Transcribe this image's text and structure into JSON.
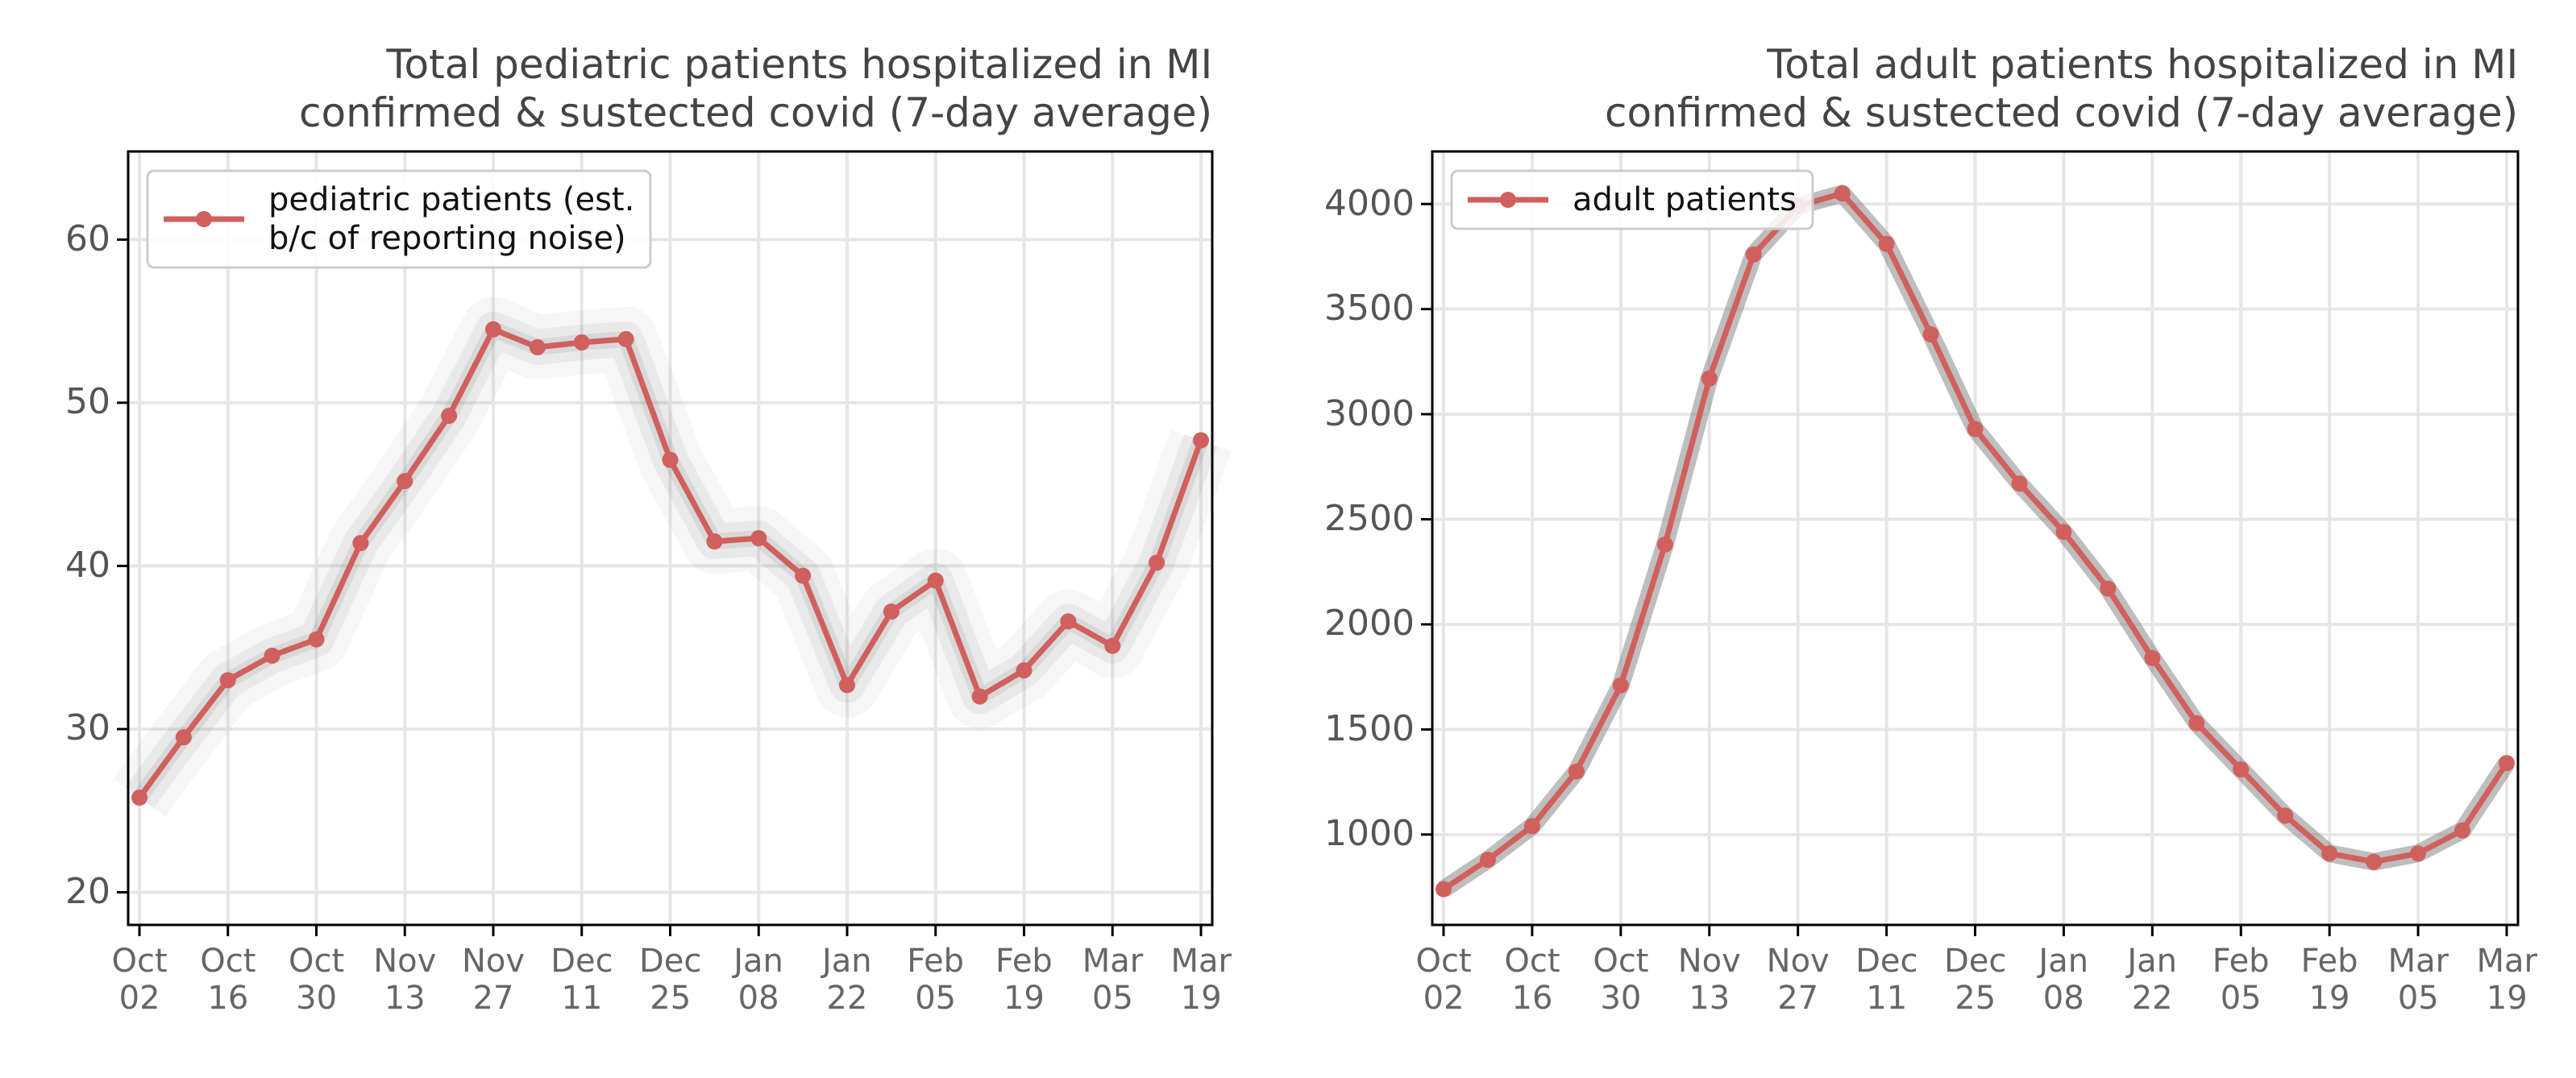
{
  "chart_data": [
    {
      "type": "line",
      "title": "Total pediatric patients hospitalized in MI\nconfirmed & sustected covid (7-day average)",
      "categories": [
        "Oct\n02",
        null,
        "Oct\n16",
        null,
        "Oct\n30",
        null,
        "Nov\n13",
        null,
        "Nov\n27",
        null,
        "Dec\n11",
        null,
        "Dec\n25",
        null,
        "Jan\n08",
        null,
        "Jan\n22",
        null,
        "Feb\n05",
        null,
        "Feb\n19",
        null,
        "Mar\n05",
        null,
        "Mar\n19"
      ],
      "series": [
        {
          "name": "pediatric patients (est.\nb/c of reporting noise)",
          "color": "#d0605e",
          "values": [
            25.8,
            29.5,
            33.0,
            34.5,
            35.5,
            41.4,
            45.2,
            49.2,
            54.5,
            53.4,
            53.7,
            53.9,
            46.5,
            41.5,
            41.7,
            39.4,
            32.7,
            37.2,
            39.1,
            32.0,
            33.6,
            36.6,
            35.1,
            40.2,
            47.7
          ]
        }
      ],
      "ylim": [
        18,
        65.4
      ],
      "yticks": [
        20,
        30,
        40,
        50,
        60
      ],
      "grid": true,
      "legend": "upper left"
    },
    {
      "type": "line",
      "title": "Total adult patients hospitalized in MI\nconfirmed & sustected covid (7-day average)",
      "categories": [
        "Oct\n02",
        null,
        "Oct\n16",
        null,
        "Oct\n30",
        null,
        "Nov\n13",
        null,
        "Nov\n27",
        null,
        "Dec\n11",
        null,
        "Dec\n25",
        null,
        "Jan\n08",
        null,
        "Jan\n22",
        null,
        "Feb\n05",
        null,
        "Feb\n19",
        null,
        "Mar\n05",
        null,
        "Mar\n19"
      ],
      "series": [
        {
          "name": "adult patients",
          "color": "#d0605e",
          "values": [
            740,
            880,
            1040,
            1300,
            1710,
            2380,
            3170,
            3760,
            3990,
            4050,
            3810,
            3380,
            2930,
            2670,
            2440,
            2170,
            1840,
            1530,
            1310,
            1090,
            910,
            870,
            910,
            1020,
            1340
          ]
        }
      ],
      "ylim": [
        570,
        4250
      ],
      "yticks": [
        1000,
        1500,
        2000,
        2500,
        3000,
        3500,
        4000
      ],
      "grid": true,
      "legend": "upper left"
    }
  ]
}
